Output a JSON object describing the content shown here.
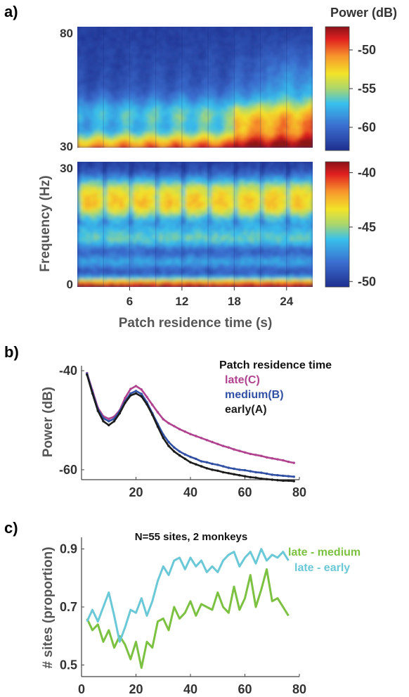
{
  "panels": {
    "a": {
      "label": "a)"
    },
    "b": {
      "label": "b)"
    },
    "c": {
      "label": "c)"
    }
  },
  "chart_data": [
    {
      "type": "heatmap",
      "panel": "a-top",
      "colorbar_title": "Power (dB)",
      "y_range": [
        30,
        80
      ],
      "y_ticks": [
        "80",
        "30"
      ],
      "x_range": [
        0,
        27
      ],
      "color_range": [
        -63,
        -47
      ],
      "colorbar_ticks": [
        "-50",
        "-55",
        "-60"
      ],
      "colorbar_tick_values": [
        -50,
        -55,
        -60
      ],
      "n_time_segments": 9
    },
    {
      "type": "heatmap",
      "panel": "a-bottom",
      "ylabel": "Frequency (Hz)",
      "xlabel": "Patch residence time (s)",
      "y_range": [
        0,
        30
      ],
      "y_ticks": [
        "30",
        "0"
      ],
      "x_range": [
        0,
        27
      ],
      "x_ticks": [
        "6",
        "12",
        "18",
        "24"
      ],
      "x_tick_values": [
        6,
        12,
        18,
        24
      ],
      "color_range": [
        -50.5,
        -39
      ],
      "colorbar_ticks": [
        "-40",
        "-45",
        "-50"
      ],
      "colorbar_tick_values": [
        -40,
        -45,
        -50
      ],
      "n_time_segments": 9
    },
    {
      "type": "line",
      "panel": "b",
      "ylabel": "Power (dB)",
      "legend_title": "Patch residence time",
      "legend_position": "top-right",
      "xlim": [
        0,
        80
      ],
      "ylim": [
        -62,
        -39
      ],
      "x_ticks": [
        "20",
        "40",
        "60",
        "80"
      ],
      "x_tick_values": [
        20,
        40,
        60,
        80
      ],
      "y_ticks": [
        "-40",
        "-60"
      ],
      "y_tick_values": [
        -40,
        -60
      ],
      "x": [
        2,
        4,
        6,
        8,
        10,
        12,
        14,
        16,
        18,
        20,
        22,
        24,
        26,
        28,
        30,
        32,
        34,
        36,
        38,
        40,
        42,
        44,
        46,
        48,
        50,
        52,
        54,
        56,
        58,
        60,
        62,
        64,
        66,
        68,
        70,
        72,
        74,
        76,
        78
      ],
      "series": [
        {
          "name": "late(C)",
          "color": "#b0438f",
          "values": [
            -40.5,
            -44,
            -47.5,
            -49.2,
            -49.7,
            -49.3,
            -48,
            -45.5,
            -43.7,
            -43.1,
            -43.8,
            -45.3,
            -46.9,
            -48.4,
            -49.8,
            -50.6,
            -51.2,
            -51.8,
            -52.3,
            -52.8,
            -53.2,
            -53.6,
            -54,
            -54.4,
            -54.8,
            -55.2,
            -55.5,
            -55.9,
            -56.2,
            -56.5,
            -56.8,
            -57,
            -57.2,
            -57.5,
            -57.7,
            -57.9,
            -58.1,
            -58.4,
            -58.6
          ]
        },
        {
          "name": "medium(B)",
          "color": "#3150a4",
          "values": [
            -40.6,
            -44.3,
            -47.8,
            -49.6,
            -50.2,
            -49.7,
            -48.2,
            -46.2,
            -44.6,
            -44.1,
            -44.7,
            -46.4,
            -48.6,
            -50.8,
            -52.9,
            -54.4,
            -55.5,
            -56.3,
            -56.9,
            -57.4,
            -57.8,
            -58.3,
            -58.5,
            -58.8,
            -59,
            -59.3,
            -59.6,
            -59.8,
            -60,
            -60.1,
            -60.3,
            -60.5,
            -60.6,
            -60.8,
            -61,
            -61.1,
            -61.2,
            -61.3,
            -61.4
          ]
        },
        {
          "name": "early(A)",
          "color": "#1c1c1c",
          "values": [
            -40.8,
            -44.6,
            -48.1,
            -50.2,
            -51,
            -50.2,
            -48.6,
            -46.5,
            -45,
            -44.6,
            -45.2,
            -46.8,
            -48.9,
            -51.3,
            -53.6,
            -55.2,
            -56.3,
            -57.1,
            -57.8,
            -58.5,
            -58.9,
            -59.3,
            -59.7,
            -60,
            -60.2,
            -60.5,
            -60.7,
            -60.9,
            -61.1,
            -61.3,
            -61.5,
            -61.6,
            -61.8,
            -61.9,
            -62,
            -62.1,
            -62.2,
            -62.2,
            -62.3
          ]
        }
      ]
    },
    {
      "type": "line",
      "panel": "c",
      "title": "N=55 sites, 2 monkeys",
      "ylabel": "# sites (proportion)",
      "legend_position": "top-right",
      "xlim": [
        0,
        80
      ],
      "ylim": [
        0.46,
        0.94
      ],
      "x_ticks": [
        "0",
        "20",
        "40",
        "60",
        "80"
      ],
      "x_tick_values": [
        0,
        20,
        40,
        60,
        80
      ],
      "y_ticks": [
        "0.9",
        "0.7",
        "0.5"
      ],
      "y_tick_values": [
        0.9,
        0.7,
        0.5
      ],
      "x": [
        2,
        4,
        6,
        8,
        10,
        12,
        14,
        16,
        18,
        20,
        22,
        24,
        26,
        28,
        30,
        32,
        34,
        36,
        38,
        40,
        42,
        44,
        46,
        48,
        50,
        52,
        54,
        56,
        58,
        60,
        62,
        64,
        66,
        68,
        70,
        72,
        74,
        76
      ],
      "series": [
        {
          "name": "late - medium",
          "color": "#7cc142",
          "values": [
            0.66,
            0.62,
            0.64,
            0.58,
            0.62,
            0.56,
            0.6,
            0.57,
            0.52,
            0.58,
            0.49,
            0.58,
            0.56,
            0.65,
            0.66,
            0.62,
            0.7,
            0.66,
            0.68,
            0.72,
            0.67,
            0.71,
            0.7,
            0.69,
            0.75,
            0.7,
            0.68,
            0.77,
            0.69,
            0.73,
            0.81,
            0.7,
            0.76,
            0.83,
            0.72,
            0.73,
            0.7,
            0.67
          ]
        },
        {
          "name": "late - early",
          "color": "#6bc8d6",
          "values": [
            0.65,
            0.69,
            0.65,
            0.7,
            0.75,
            0.67,
            0.58,
            0.63,
            0.69,
            0.68,
            0.73,
            0.67,
            0.72,
            0.79,
            0.84,
            0.81,
            0.86,
            0.87,
            0.83,
            0.87,
            0.84,
            0.86,
            0.82,
            0.84,
            0.82,
            0.86,
            0.88,
            0.89,
            0.84,
            0.87,
            0.89,
            0.85,
            0.9,
            0.86,
            0.88,
            0.87,
            0.89,
            0.86
          ]
        }
      ]
    }
  ]
}
